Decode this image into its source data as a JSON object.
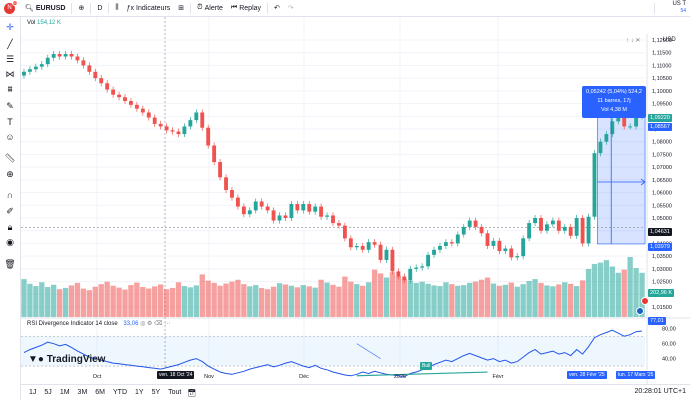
{
  "header": {
    "avatar_letter": "N",
    "avatar_badge": "11",
    "symbol": "EURUSD",
    "interval": "D",
    "indicators_label": "Indicateurs",
    "alert_label": "Alerte",
    "replay_label": "Replay",
    "right_top": "US T",
    "right_sub": "54"
  },
  "volume_label": {
    "name": "Vol",
    "value": "154,12 K"
  },
  "rsi_label": {
    "name": "RSI Divergence Indicator 14 close",
    "value": "33,06"
  },
  "logo_text": "TradingView",
  "currency": "USD",
  "price_axis": [
    "1,12000",
    "1,11500",
    "1,11000",
    "1,10500",
    "1,10000",
    "1,09500",
    "1,09000",
    "1,08500",
    "1,08000",
    "1,07500",
    "1,07000",
    "1,06500",
    "1,06000",
    "1,05500",
    "1,05000",
    "1,04500",
    "1,04000",
    "1,03500",
    "1,03000",
    "1,02500",
    "1,02000",
    "1,01500"
  ],
  "price_badges": {
    "current": "1,09220",
    "second": "1,08567",
    "crosshair": "1,04631",
    "low": "1,03979",
    "vol": "202,96 K",
    "rsi": "77,01"
  },
  "rsi_axis": [
    "80,00",
    "60,00",
    "40,00"
  ],
  "time_axis": [
    "Oct",
    "Nov",
    "Déc",
    "2025",
    "Févr"
  ],
  "crosshair_time": "ven. 18 Oct '24",
  "range_start_time": "ven. 28 Févr '25",
  "range_end_time": "lun. 17 Mars '25",
  "measure": {
    "line1": "0,05242 (5,04%) 524,2",
    "line2": "11 barres, 17j",
    "line3": "Vol 4,38 M"
  },
  "bull_label": "Bull",
  "ranges": [
    "1J",
    "5J",
    "1M",
    "3M",
    "6M",
    "YTD",
    "1Y",
    "5Y",
    "Tout"
  ],
  "clock": "20:28:01 UTC+1",
  "colors": {
    "up": "#26a69a",
    "down": "#ef5350",
    "accent": "#2962ff",
    "rsi": "#2154e8"
  },
  "chart_data": {
    "type": "candlestick",
    "opens": [
      1.106,
      1.1075,
      1.1085,
      1.1095,
      1.1105,
      1.113,
      1.1145,
      1.1135,
      1.1145,
      1.1135,
      1.112,
      1.11,
      1.1075,
      1.105,
      1.103,
      1.1005,
      1.0985,
      1.0975,
      1.096,
      1.0945,
      1.093,
      1.0915,
      1.0895,
      1.087,
      1.086,
      1.0845,
      1.084,
      1.083,
      1.086,
      1.0885,
      1.0915,
      1.0855,
      1.0785,
      1.072,
      1.066,
      1.061,
      1.058,
      1.0545,
      1.0515,
      1.053,
      1.0565,
      1.0545,
      1.053,
      1.049,
      1.051,
      1.05,
      1.0555,
      1.053,
      1.0555,
      1.0525,
      1.0545,
      1.0505,
      1.051,
      1.048,
      1.047,
      1.042,
      1.0385,
      1.039,
      1.0375,
      1.0405,
      1.0395,
      1.0335,
      1.0375,
      1.029,
      1.027,
      1.0255,
      1.03,
      1.0305,
      1.031,
      1.0355,
      1.0375,
      1.039,
      1.0405,
      1.04,
      1.0435,
      1.0465,
      1.049,
      1.0465,
      1.044,
      1.039,
      1.041,
      1.037,
      1.038,
      1.0345,
      1.035,
      1.042,
      1.048,
      1.05,
      1.045,
      1.0475,
      1.049,
      1.045,
      1.0465,
      1.043,
      1.05,
      1.04,
      1.0505,
      1.0755,
      1.08,
      1.083,
      1.088,
      1.09,
      1.086,
      1.086,
      1.09
    ],
    "closes": [
      1.1075,
      1.1085,
      1.1095,
      1.1105,
      1.113,
      1.1145,
      1.1135,
      1.1145,
      1.1135,
      1.112,
      1.11,
      1.1075,
      1.105,
      1.103,
      1.1005,
      1.0985,
      1.0975,
      1.096,
      1.0945,
      1.093,
      1.0915,
      1.0895,
      1.087,
      1.086,
      1.0845,
      1.084,
      1.083,
      1.086,
      1.0885,
      1.0915,
      1.0855,
      1.0785,
      1.072,
      1.066,
      1.061,
      1.058,
      1.0545,
      1.0515,
      1.053,
      1.0565,
      1.0545,
      1.053,
      1.049,
      1.051,
      1.05,
      1.0555,
      1.053,
      1.0555,
      1.0525,
      1.0545,
      1.0505,
      1.051,
      1.048,
      1.047,
      1.042,
      1.0385,
      1.039,
      1.0375,
      1.0405,
      1.0395,
      1.0335,
      1.0375,
      1.029,
      1.027,
      1.0255,
      1.03,
      1.0305,
      1.031,
      1.0355,
      1.0375,
      1.039,
      1.0405,
      1.04,
      1.0435,
      1.0465,
      1.049,
      1.0465,
      1.044,
      1.039,
      1.041,
      1.037,
      1.038,
      1.0345,
      1.035,
      1.042,
      1.048,
      1.05,
      1.045,
      1.0475,
      1.049,
      1.045,
      1.0465,
      1.043,
      1.05,
      1.04,
      1.0505,
      1.0755,
      1.08,
      1.083,
      1.088,
      1.09,
      1.086,
      1.086,
      1.09,
      1.0922
    ],
    "volumes": [
      120,
      105,
      98,
      110,
      95,
      102,
      88,
      92,
      100,
      108,
      90,
      85,
      96,
      104,
      112,
      99,
      93,
      87,
      101,
      109,
      95,
      90,
      97,
      103,
      88,
      92,
      110,
      98,
      94,
      100,
      135,
      115,
      108,
      99,
      106,
      112,
      118,
      104,
      97,
      101,
      92,
      88,
      96,
      107,
      103,
      99,
      94,
      101,
      97,
      93,
      118,
      109,
      102,
      96,
      128,
      112,
      104,
      99,
      110,
      150,
      138,
      125,
      142,
      130,
      120,
      115,
      108,
      112,
      105,
      100,
      98,
      110,
      104,
      99,
      101,
      108,
      112,
      118,
      125,
      106,
      99,
      102,
      109,
      96,
      104,
      114,
      120,
      108,
      100,
      97,
      103,
      110,
      105,
      98,
      116,
      152,
      168,
      172,
      180,
      160,
      140,
      150,
      190,
      155,
      140
    ],
    "rsi": [
      48,
      52,
      55,
      58,
      62,
      60,
      57,
      59,
      55,
      50,
      46,
      42,
      40,
      38,
      36,
      34,
      33,
      32,
      31,
      30,
      29,
      28,
      27,
      26,
      28,
      30,
      32,
      35,
      38,
      40,
      36,
      30,
      26,
      22,
      20,
      19,
      21,
      23,
      26,
      28,
      30,
      32,
      29,
      31,
      34,
      36,
      33,
      30,
      28,
      31,
      27,
      25,
      22,
      20,
      18,
      17,
      19,
      22,
      20,
      23,
      21,
      19,
      18,
      17,
      16,
      20,
      22,
      25,
      28,
      32,
      35,
      38,
      36,
      40,
      44,
      47,
      44,
      41,
      38,
      40,
      36,
      38,
      34,
      36,
      42,
      48,
      52,
      46,
      48,
      50,
      46,
      48,
      44,
      52,
      46,
      56,
      68,
      72,
      75,
      78,
      74,
      70,
      72,
      76,
      77
    ]
  }
}
